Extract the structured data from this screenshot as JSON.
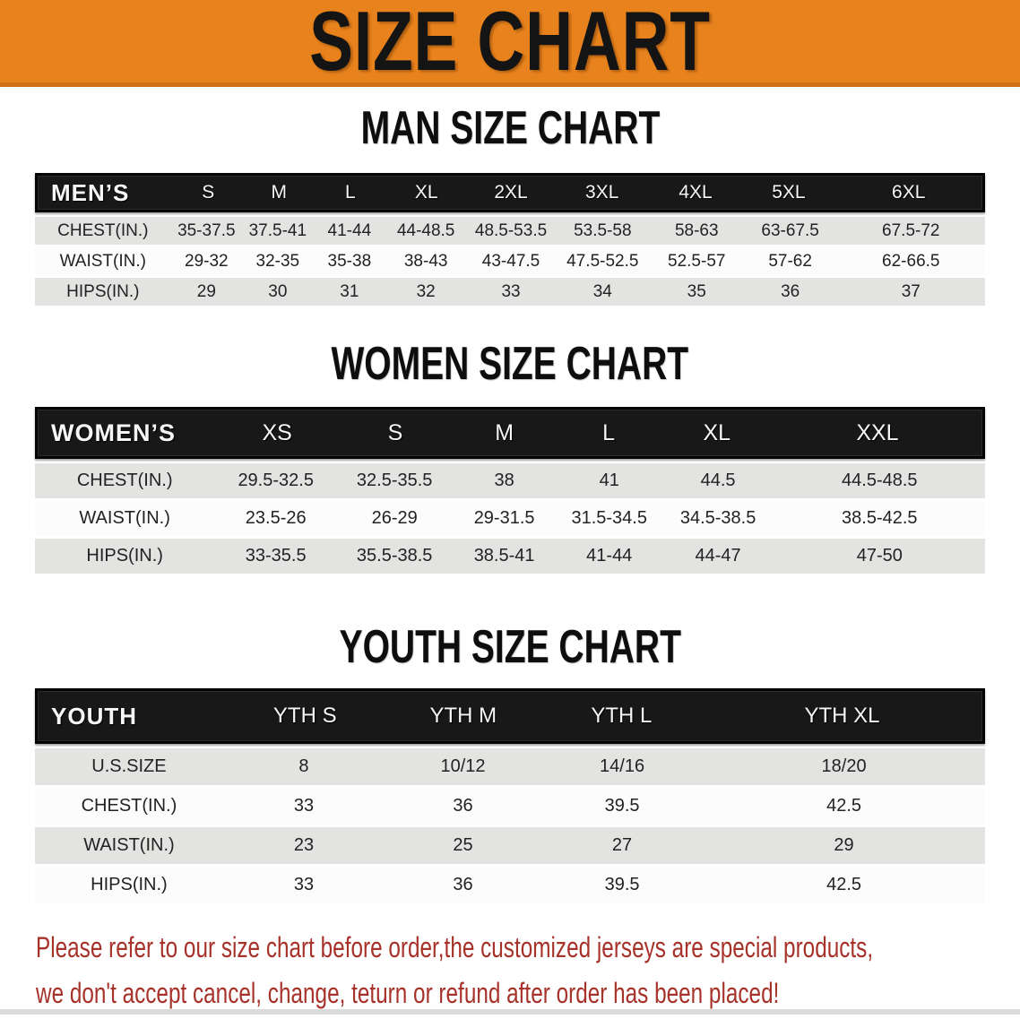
{
  "banner": {
    "title": "SIZE CHART",
    "bg_color": "#E8821C"
  },
  "sections": [
    {
      "id": "men",
      "title": "MAN SIZE CHART",
      "corner_label": "MEN’S",
      "columns": [
        "S",
        "M",
        "L",
        "XL",
        "2XL",
        "3XL",
        "4XL",
        "5XL",
        "6XL"
      ],
      "rows": [
        {
          "label": "CHEST(IN.)",
          "values": [
            "35-37.5",
            "37.5-41",
            "41-44",
            "44-48.5",
            "48.5-53.5",
            "53.5-58",
            "58-63",
            "63-67.5",
            "67.5-72"
          ]
        },
        {
          "label": "WAIST(IN.)",
          "values": [
            "29-32",
            "32-35",
            "35-38",
            "38-43",
            "43-47.5",
            "47.5-52.5",
            "52.5-57",
            "57-62",
            "62-66.5"
          ]
        },
        {
          "label": "HIPS(IN.)",
          "values": [
            "29",
            "30",
            "31",
            "32",
            "33",
            "34",
            "35",
            "36",
            "37"
          ]
        }
      ]
    },
    {
      "id": "women",
      "title": "WOMEN SIZE CHART",
      "corner_label": "WOMEN’S",
      "columns": [
        "XS",
        "S",
        "M",
        "L",
        "XL",
        "XXL"
      ],
      "rows": [
        {
          "label": "CHEST(IN.)",
          "values": [
            "29.5-32.5",
            "32.5-35.5",
            "38",
            "41",
            "44.5",
            "44.5-48.5"
          ]
        },
        {
          "label": "WAIST(IN.)",
          "values": [
            "23.5-26",
            "26-29",
            "29-31.5",
            "31.5-34.5",
            "34.5-38.5",
            "38.5-42.5"
          ]
        },
        {
          "label": "HIPS(IN.)",
          "values": [
            "33-35.5",
            "35.5-38.5",
            "38.5-41",
            "41-44",
            "44-47",
            "47-50"
          ]
        }
      ]
    },
    {
      "id": "youth",
      "title": "YOUTH SIZE CHART",
      "corner_label": "YOUTH",
      "columns": [
        "YTH S",
        "YTH M",
        "YTH L",
        "YTH XL"
      ],
      "rows": [
        {
          "label": "U.S.SIZE",
          "values": [
            "8",
            "10/12",
            "14/16",
            "18/20"
          ]
        },
        {
          "label": "CHEST(IN.)",
          "values": [
            "33",
            "36",
            "39.5",
            "42.5"
          ]
        },
        {
          "label": "WAIST(IN.)",
          "values": [
            "23",
            "25",
            "27",
            "29"
          ]
        },
        {
          "label": "HIPS(IN.)",
          "values": [
            "33",
            "36",
            "39.5",
            "42.5"
          ]
        }
      ]
    }
  ],
  "footer": {
    "line1": "Please refer to our size chart before order,the customized jerseys are special products,",
    "line2": "we don't accept cancel, change, teturn or refund after order has been placed!",
    "text_color": "#A6322A"
  }
}
